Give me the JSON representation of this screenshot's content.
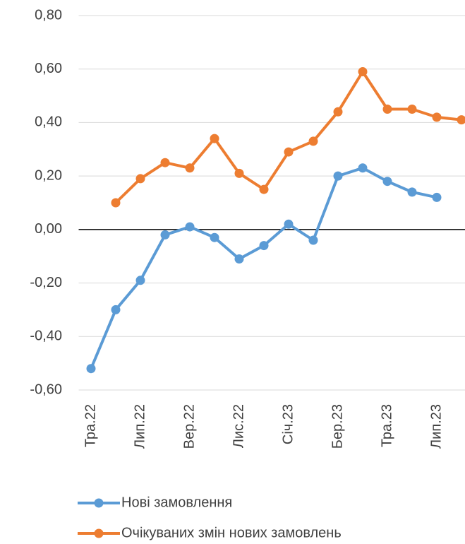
{
  "chart_data": {
    "type": "line",
    "categories": [
      "Тра.22",
      null,
      "Лип.22",
      null,
      "Вер.22",
      null,
      "Лис.22",
      null,
      "Січ.23",
      null,
      "Бер.23",
      null,
      "Тра.23",
      null,
      "Лип.23",
      null
    ],
    "series": [
      {
        "name": "Нові замовлення",
        "color": "#5b9bd5",
        "values": [
          -0.52,
          -0.3,
          -0.19,
          -0.02,
          0.01,
          -0.03,
          -0.11,
          -0.06,
          0.02,
          -0.04,
          0.2,
          0.23,
          0.18,
          0.14,
          0.12,
          null
        ]
      },
      {
        "name": "Очікуваних змін нових замовлень",
        "color": "#ed7d31",
        "values": [
          null,
          0.1,
          0.19,
          0.25,
          0.23,
          0.34,
          0.21,
          0.15,
          0.29,
          0.33,
          0.44,
          0.59,
          0.45,
          0.45,
          0.42,
          0.41
        ]
      }
    ],
    "ylim": [
      -0.6,
      0.8
    ],
    "yticks": [
      {
        "value": -0.6,
        "label": "-0,60"
      },
      {
        "value": -0.4,
        "label": "-0,40"
      },
      {
        "value": -0.2,
        "label": "-0,20"
      },
      {
        "value": 0,
        "label": "0,00"
      },
      {
        "value": 0.2,
        "label": "0,20"
      },
      {
        "value": 0.4,
        "label": "0,40"
      },
      {
        "value": 0.6,
        "label": "0,60"
      },
      {
        "value": 0.8,
        "label": "0,80"
      }
    ],
    "grid": true,
    "legend": "bottom"
  }
}
